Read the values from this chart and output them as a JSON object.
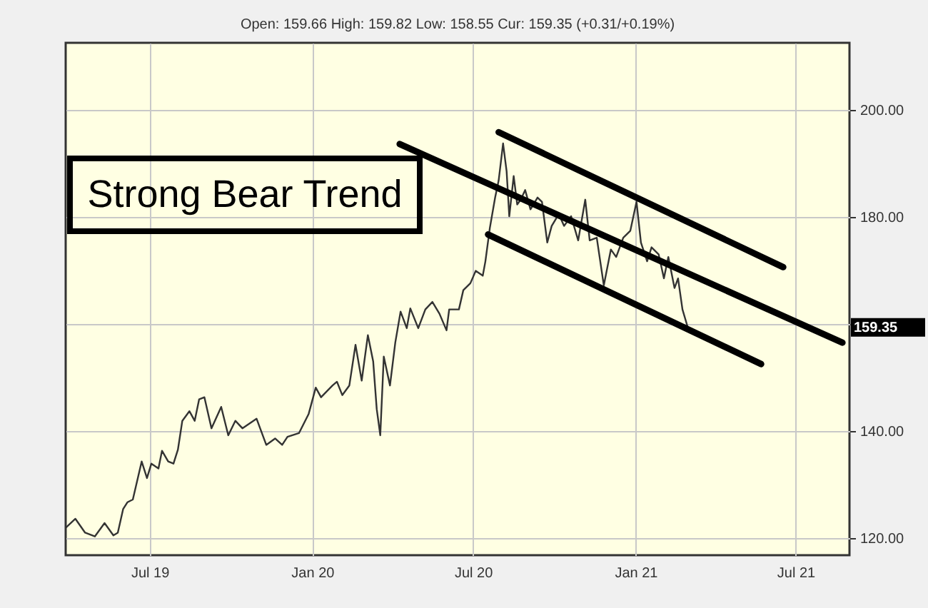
{
  "chart_data": {
    "type": "line",
    "subtitle": "Open: 159.66 High: 159.82 Low: 158.55 Cur: 159.35 (+0.31/+0.19%)",
    "x": [
      "2019-03-28",
      "2019-04-08",
      "2019-04-19",
      "2019-04-30",
      "2019-05-11",
      "2019-05-21",
      "2019-05-26",
      "2019-06-01",
      "2019-06-06",
      "2019-06-12",
      "2019-06-22",
      "2019-06-28",
      "2019-07-03",
      "2019-07-11",
      "2019-07-15",
      "2019-07-22",
      "2019-07-28",
      "2019-08-02",
      "2019-08-07",
      "2019-08-15",
      "2019-08-21",
      "2019-08-26",
      "2019-09-01",
      "2019-09-09",
      "2019-09-20",
      "2019-09-28",
      "2019-10-06",
      "2019-10-14",
      "2019-10-22",
      "2019-10-30",
      "2019-11-10",
      "2019-11-20",
      "2019-11-28",
      "2019-12-04",
      "2019-12-17",
      "2019-12-28",
      "2020-01-05",
      "2020-01-11",
      "2020-01-24",
      "2020-01-29",
      "2020-02-04",
      "2020-02-12",
      "2020-02-19",
      "2020-02-26",
      "2020-03-04",
      "2020-03-10",
      "2020-03-14",
      "2020-03-18",
      "2020-03-22",
      "2020-03-29",
      "2020-04-04",
      "2020-04-10",
      "2020-04-17",
      "2020-04-21",
      "2020-04-30",
      "2020-05-08",
      "2020-05-16",
      "2020-05-24",
      "2020-06-01",
      "2020-06-04",
      "2020-06-15",
      "2020-06-20",
      "2020-06-28",
      "2020-07-04",
      "2020-07-12",
      "2020-07-15",
      "2020-07-20",
      "2020-07-26",
      "2020-07-30",
      "2020-08-04",
      "2020-08-08",
      "2020-08-11",
      "2020-08-16",
      "2020-08-20",
      "2020-08-24",
      "2020-08-29",
      "2020-09-04",
      "2020-09-12",
      "2020-09-17",
      "2020-09-23",
      "2020-09-28",
      "2020-10-06",
      "2020-10-12",
      "2020-10-20",
      "2020-10-28",
      "2020-11-05",
      "2020-11-10",
      "2020-11-18",
      "2020-11-26",
      "2020-12-04",
      "2020-12-10",
      "2020-12-18",
      "2020-12-26",
      "2021-01-02",
      "2021-01-07",
      "2021-01-14",
      "2021-01-19",
      "2021-01-27",
      "2021-02-02",
      "2021-02-07",
      "2021-02-14",
      "2021-02-18",
      "2021-02-23",
      "2021-03-01"
    ],
    "series": [
      {
        "color": "#333333",
        "values": [
          121.9,
          123.6,
          121.0,
          120.3,
          122.8,
          120.5,
          121.0,
          125.4,
          126.7,
          127.2,
          134.3,
          131.2,
          133.9,
          133.0,
          136.3,
          134.3,
          133.9,
          136.5,
          141.9,
          143.7,
          141.9,
          145.9,
          146.3,
          140.5,
          144.5,
          139.2,
          141.9,
          140.5,
          141.4,
          142.3,
          137.4,
          138.6,
          137.4,
          138.9,
          139.6,
          143.2,
          148.1,
          146.3,
          148.5,
          149.2,
          146.7,
          148.5,
          156.1,
          149.4,
          157.9,
          153.0,
          144.1,
          139.2,
          153.9,
          148.5,
          156.5,
          162.3,
          159.2,
          162.9,
          159.2,
          162.7,
          164.1,
          161.9,
          158.8,
          162.7,
          162.7,
          166.3,
          167.6,
          169.9,
          169.0,
          171.7,
          177.9,
          183.6,
          186.8,
          193.7,
          188.5,
          180.1,
          187.6,
          182.3,
          183.2,
          185.0,
          181.4,
          183.6,
          182.8,
          175.2,
          178.3,
          180.5,
          178.3,
          180.1,
          175.6,
          183.2,
          175.6,
          176.1,
          167.2,
          173.9,
          172.5,
          176.1,
          177.4,
          182.8,
          175.2,
          171.7,
          174.3,
          173.0,
          168.5,
          172.5,
          166.7,
          168.5,
          162.7,
          159.35
        ]
      },
      {
        "type": "line",
        "color": "#000000",
        "x": [
          "2020-07-30",
          "2021-06-17"
        ],
        "values": [
          195.8,
          170.6
        ]
      },
      {
        "type": "line",
        "color": "#000000",
        "x": [
          "2020-04-09",
          "2021-08-23"
        ],
        "values": [
          193.6,
          156.5
        ]
      },
      {
        "type": "line",
        "color": "#000000",
        "x": [
          "2020-07-18",
          "2021-05-23"
        ],
        "values": [
          176.7,
          152.5
        ]
      }
    ],
    "xlim": [
      "2019-03-28",
      "2021-08-31"
    ],
    "xticks": [
      {
        "value": "2019-07-01",
        "label": "Jul 19"
      },
      {
        "value": "2020-01-01",
        "label": "Jan 20"
      },
      {
        "value": "2020-07-01",
        "label": "Jul 20"
      },
      {
        "value": "2021-01-01",
        "label": "Jan 21"
      },
      {
        "value": "2021-07-01",
        "label": "Jul 21"
      }
    ],
    "ylim": [
      116.8,
      212.5
    ],
    "yticks": [
      {
        "value": 120,
        "label": "120.00"
      },
      {
        "value": 140,
        "label": "140.00"
      },
      {
        "value": 160,
        "label": null
      },
      {
        "value": 180,
        "label": "180.00"
      },
      {
        "value": 200,
        "label": "200.00"
      }
    ],
    "grid": true,
    "annotations": [
      "Strong Bear Trend",
      "159.35"
    ]
  }
}
